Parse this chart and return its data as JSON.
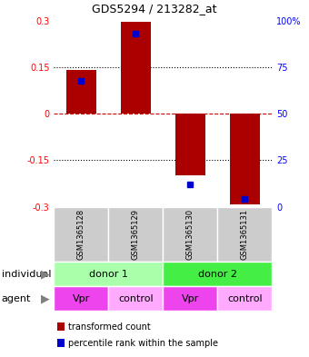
{
  "title": "GDS5294 / 213282_at",
  "bar_values": [
    0.143,
    0.297,
    -0.199,
    -0.293
  ],
  "percentile_values": [
    68,
    93,
    12,
    4
  ],
  "sample_labels": [
    "GSM1365128",
    "GSM1365129",
    "GSM1365130",
    "GSM1365131"
  ],
  "agent_labels": [
    "Vpr",
    "control",
    "Vpr",
    "control"
  ],
  "bar_color": "#aa0000",
  "dot_color": "#0000cc",
  "left_ylim": [
    -0.3,
    0.3
  ],
  "right_ylim": [
    0,
    100
  ],
  "left_yticks": [
    -0.3,
    -0.15,
    0,
    0.15,
    0.3
  ],
  "right_yticks": [
    0,
    25,
    50,
    75,
    100
  ],
  "right_yticklabels": [
    "0",
    "25",
    "50",
    "75",
    "100%"
  ],
  "hline_color_zero": "#cc0000",
  "hline_color_other": "#000000",
  "donor1_color": "#aaffaa",
  "donor2_color": "#44ee44",
  "vpr_color": "#ee44ee",
  "control_color": "#ffaaff",
  "sample_bg_color": "#cccccc",
  "bar_width": 0.55,
  "tick_fontsize": 7,
  "label_fontsize": 8,
  "title_fontsize": 9
}
